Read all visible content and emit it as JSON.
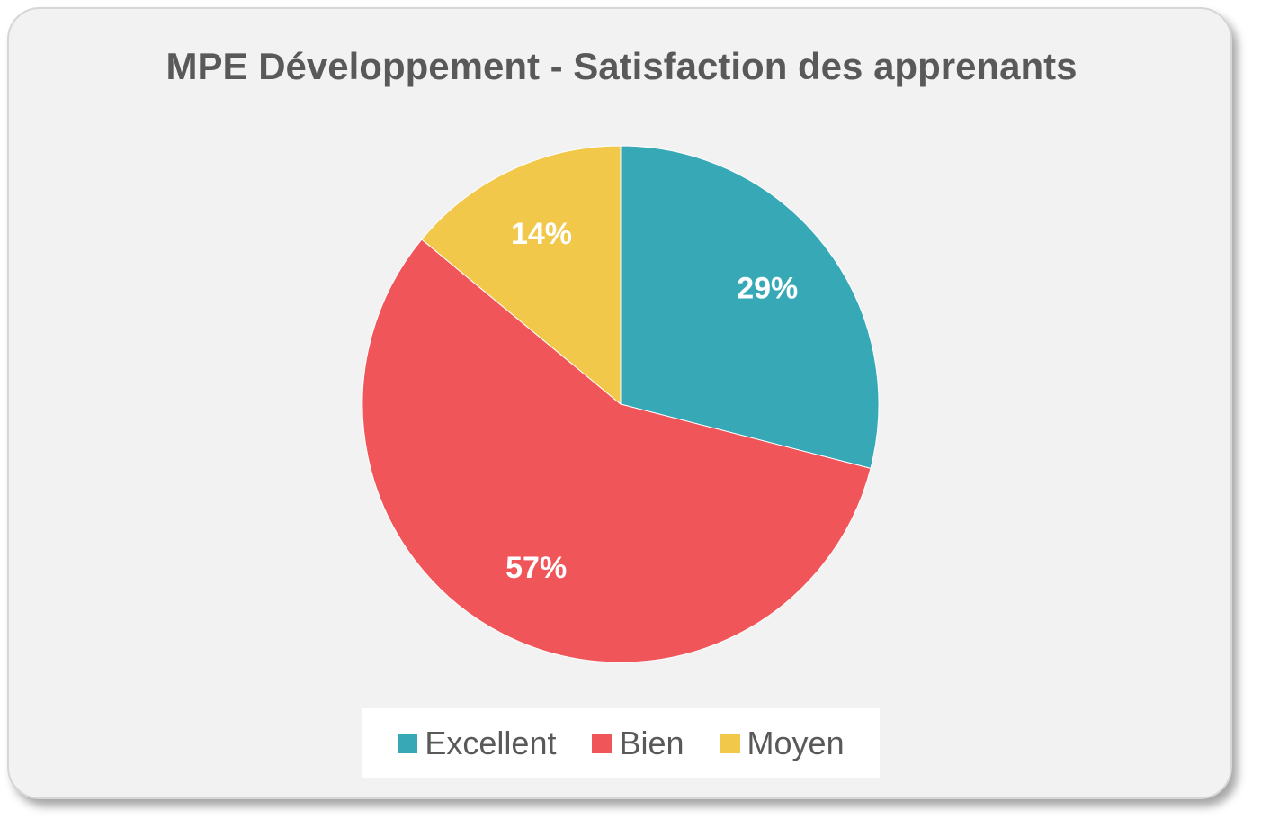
{
  "chart_data": {
    "type": "pie",
    "title": "MPE Développement - Satisfaction des apprenants",
    "categories": [
      "Excellent",
      "Bien",
      "Moyen"
    ],
    "values": [
      29,
      57,
      14
    ],
    "labels": [
      "29%",
      "57%",
      "14%"
    ],
    "colors": [
      "#36a8b6",
      "#f0555a",
      "#f2c84b"
    ],
    "start_angle_deg": 0,
    "direction": "clockwise",
    "legend_position": "bottom"
  }
}
